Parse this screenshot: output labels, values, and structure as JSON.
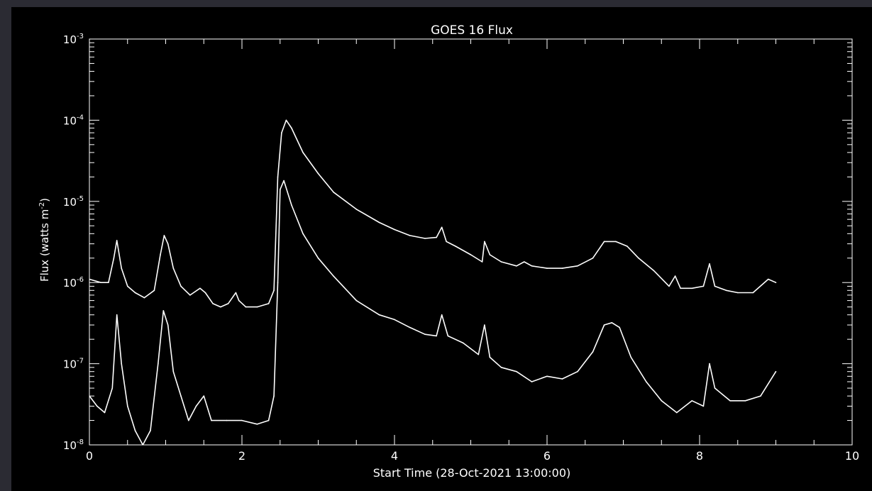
{
  "chart_data": {
    "type": "line",
    "title": "GOES 16 Flux",
    "xlabel": "Start Time (28-Oct-2021 13:00:00)",
    "ylabel_main": "Flux (watts m",
    "ylabel_sup": "-2",
    "ylabel_end": ")",
    "xlim": [
      0,
      10
    ],
    "ylim": [
      1e-08,
      0.001
    ],
    "yscale": "log",
    "grid": false,
    "x_ticks": [
      0,
      2,
      4,
      6,
      8,
      10
    ],
    "x_tick_labels": [
      "0",
      "2",
      "4",
      "6",
      "8",
      "10"
    ],
    "y_ticks": [
      {
        "exp": -8,
        "label_base": "10",
        "label_sup": "-8"
      },
      {
        "exp": -7,
        "label_base": "10",
        "label_sup": "-7"
      },
      {
        "exp": -6,
        "label_base": "10",
        "label_sup": "-6"
      },
      {
        "exp": -5,
        "label_base": "10",
        "label_sup": "-5"
      },
      {
        "exp": -4,
        "label_base": "10",
        "label_sup": "-4"
      },
      {
        "exp": -3,
        "label_base": "10",
        "label_sup": "-3"
      }
    ],
    "series": [
      {
        "line_color": "#ffffff",
        "x": [
          0,
          0.15,
          0.25,
          0.32,
          0.36,
          0.42,
          0.5,
          0.6,
          0.72,
          0.85,
          0.93,
          0.98,
          1.03,
          1.1,
          1.2,
          1.32,
          1.45,
          1.52,
          1.62,
          1.72,
          1.82,
          1.92,
          1.96,
          2.05,
          2.2,
          2.35,
          2.42,
          2.47,
          2.52,
          2.58,
          2.65,
          2.8,
          3.0,
          3.2,
          3.5,
          3.8,
          4.0,
          4.2,
          4.4,
          4.55,
          4.62,
          4.68,
          4.8,
          5.0,
          5.15,
          5.18,
          5.25,
          5.4,
          5.6,
          5.7,
          5.8,
          6.0,
          6.2,
          6.4,
          6.6,
          6.75,
          6.9,
          7.05,
          7.2,
          7.4,
          7.6,
          7.68,
          7.75,
          7.9,
          8.05,
          8.13,
          8.2,
          8.35,
          8.5,
          8.7,
          8.9,
          9.0
        ],
        "y": [
          1.1e-06,
          1e-06,
          1e-06,
          2e-06,
          3.3e-06,
          1.5e-06,
          9e-07,
          7.5e-07,
          6.5e-07,
          8e-07,
          2.2e-06,
          3.8e-06,
          3e-06,
          1.5e-06,
          9e-07,
          7e-07,
          8.5e-07,
          7.5e-07,
          5.5e-07,
          5e-07,
          5.5e-07,
          7.5e-07,
          6e-07,
          5e-07,
          5e-07,
          5.5e-07,
          8e-07,
          2e-05,
          7e-05,
          0.0001,
          8e-05,
          4e-05,
          2.2e-05,
          1.3e-05,
          8e-06,
          5.5e-06,
          4.5e-06,
          3.8e-06,
          3.5e-06,
          3.6e-06,
          4.8e-06,
          3.2e-06,
          2.8e-06,
          2.2e-06,
          1.8e-06,
          3.2e-06,
          2.2e-06,
          1.8e-06,
          1.6e-06,
          1.8e-06,
          1.6e-06,
          1.5e-06,
          1.5e-06,
          1.6e-06,
          2e-06,
          3.2e-06,
          3.2e-06,
          2.8e-06,
          2e-06,
          1.4e-06,
          9e-07,
          1.2e-06,
          8.5e-07,
          8.5e-07,
          9e-07,
          1.7e-06,
          9e-07,
          8e-07,
          7.5e-07,
          7.5e-07,
          1.1e-06,
          1e-06
        ]
      },
      {
        "line_color": "#ffffff",
        "x": [
          0,
          0.1,
          0.2,
          0.3,
          0.36,
          0.42,
          0.5,
          0.6,
          0.7,
          0.8,
          0.9,
          0.97,
          1.03,
          1.1,
          1.2,
          1.3,
          1.4,
          1.5,
          1.6,
          1.8,
          2.0,
          2.2,
          2.35,
          2.42,
          2.47,
          2.5,
          2.55,
          2.65,
          2.8,
          3.0,
          3.2,
          3.5,
          3.8,
          4.0,
          4.2,
          4.4,
          4.55,
          4.62,
          4.7,
          4.9,
          5.1,
          5.18,
          5.25,
          5.4,
          5.6,
          5.8,
          6.0,
          6.2,
          6.4,
          6.6,
          6.75,
          6.85,
          6.95,
          7.1,
          7.3,
          7.5,
          7.7,
          7.9,
          8.05,
          8.13,
          8.2,
          8.4,
          8.6,
          8.8,
          9.0
        ],
        "y": [
          4e-08,
          3e-08,
          2.5e-08,
          5e-08,
          4e-07,
          1e-07,
          3e-08,
          1.5e-08,
          1e-08,
          1.5e-08,
          1e-07,
          4.5e-07,
          3e-07,
          8e-08,
          4e-08,
          2e-08,
          3e-08,
          4e-08,
          2e-08,
          2e-08,
          2e-08,
          1.8e-08,
          2e-08,
          4e-08,
          1e-06,
          1.4e-05,
          1.8e-05,
          9e-06,
          4e-06,
          2e-06,
          1.2e-06,
          6e-07,
          4e-07,
          3.5e-07,
          2.8e-07,
          2.3e-07,
          2.2e-07,
          4e-07,
          2.2e-07,
          1.8e-07,
          1.3e-07,
          3e-07,
          1.2e-07,
          9e-08,
          8e-08,
          6e-08,
          7e-08,
          6.5e-08,
          8e-08,
          1.4e-07,
          3e-07,
          3.2e-07,
          2.8e-07,
          1.2e-07,
          6e-08,
          3.5e-08,
          2.5e-08,
          3.5e-08,
          3e-08,
          1e-07,
          5e-08,
          3.5e-08,
          3.5e-08,
          4e-08,
          8e-08
        ]
      }
    ]
  }
}
